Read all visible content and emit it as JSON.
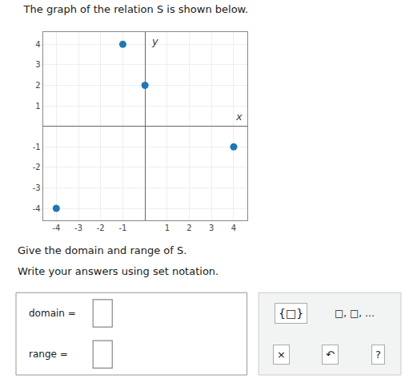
{
  "chart_data": {
    "type": "scatter",
    "title": "The graph of the relation S is shown below.",
    "x": [
      -1,
      0,
      4,
      -4
    ],
    "values": [
      4,
      2,
      -1,
      -4
    ],
    "xlabel": "x",
    "ylabel": "y",
    "xlim": [
      -4.6,
      4.6
    ],
    "ylim": [
      -4.6,
      4.6
    ],
    "xticks": [
      -4,
      -3,
      -2,
      -1,
      1,
      2,
      3,
      4
    ],
    "yticks": [
      -4,
      -3,
      -2,
      -1,
      1,
      2,
      3,
      4
    ],
    "grid": true,
    "annotations": [
      "Give the domain and range of S.",
      "Write your answers using set notation.",
      "domain =",
      "range =",
      "{□}",
      "□, □, …",
      "×",
      "↶",
      "?"
    ]
  }
}
